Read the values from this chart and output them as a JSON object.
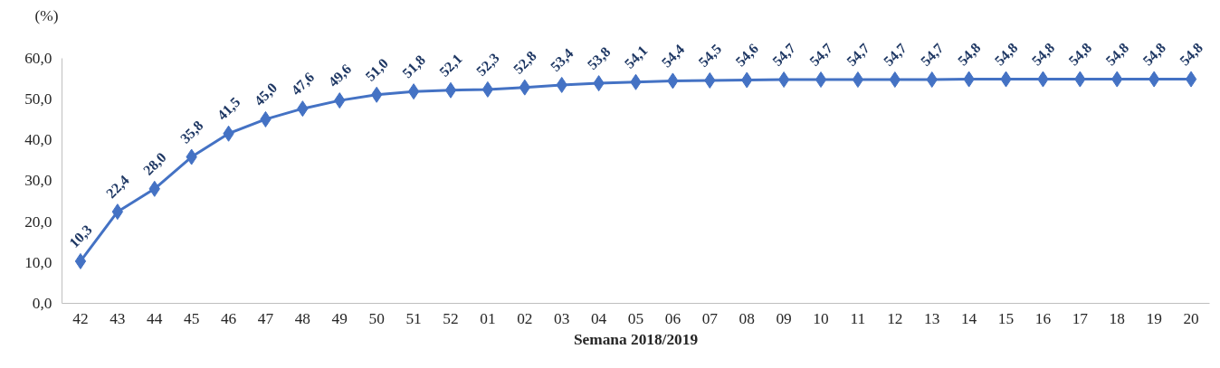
{
  "chart_data": {
    "type": "line",
    "xlabel": "Semana 2018/2019",
    "ylabel": "(%)",
    "categories": [
      "42",
      "43",
      "44",
      "45",
      "46",
      "47",
      "48",
      "49",
      "50",
      "51",
      "52",
      "01",
      "02",
      "03",
      "04",
      "05",
      "06",
      "07",
      "08",
      "09",
      "10",
      "11",
      "12",
      "13",
      "14",
      "15",
      "16",
      "17",
      "18",
      "19",
      "20"
    ],
    "series": [
      {
        "color": "#4472c4",
        "values": [
          10.3,
          22.4,
          28.0,
          35.8,
          41.5,
          45.0,
          47.6,
          49.6,
          51.0,
          51.8,
          52.1,
          52.3,
          52.8,
          53.4,
          53.8,
          54.1,
          54.4,
          54.5,
          54.6,
          54.7,
          54.7,
          54.7,
          54.7,
          54.7,
          54.8,
          54.8,
          54.8,
          54.8,
          54.8,
          54.8,
          54.8
        ],
        "value_labels": [
          "10,3",
          "22,4",
          "28,0",
          "35,8",
          "41,5",
          "45,0",
          "47,6",
          "49,6",
          "51,0",
          "51,8",
          "52,1",
          "52,3",
          "52,8",
          "53,4",
          "53,8",
          "54,1",
          "54,4",
          "54,5",
          "54,6",
          "54,7",
          "54,7",
          "54,7",
          "54,7",
          "54,7",
          "54,8",
          "54,8",
          "54,8",
          "54,8",
          "54,8",
          "54,8",
          "54,8"
        ]
      }
    ],
    "ylim": [
      0,
      60
    ],
    "yticks": [
      {
        "value": 0,
        "label": "0,0"
      },
      {
        "value": 10,
        "label": "10,0"
      },
      {
        "value": 20,
        "label": "20,0"
      },
      {
        "value": 30,
        "label": "30,0"
      },
      {
        "value": 40,
        "label": "40,0"
      },
      {
        "value": 50,
        "label": "50,0"
      },
      {
        "value": 60,
        "label": "60,0"
      }
    ],
    "grid": false,
    "marker": "diamond",
    "line_style": "solid"
  }
}
